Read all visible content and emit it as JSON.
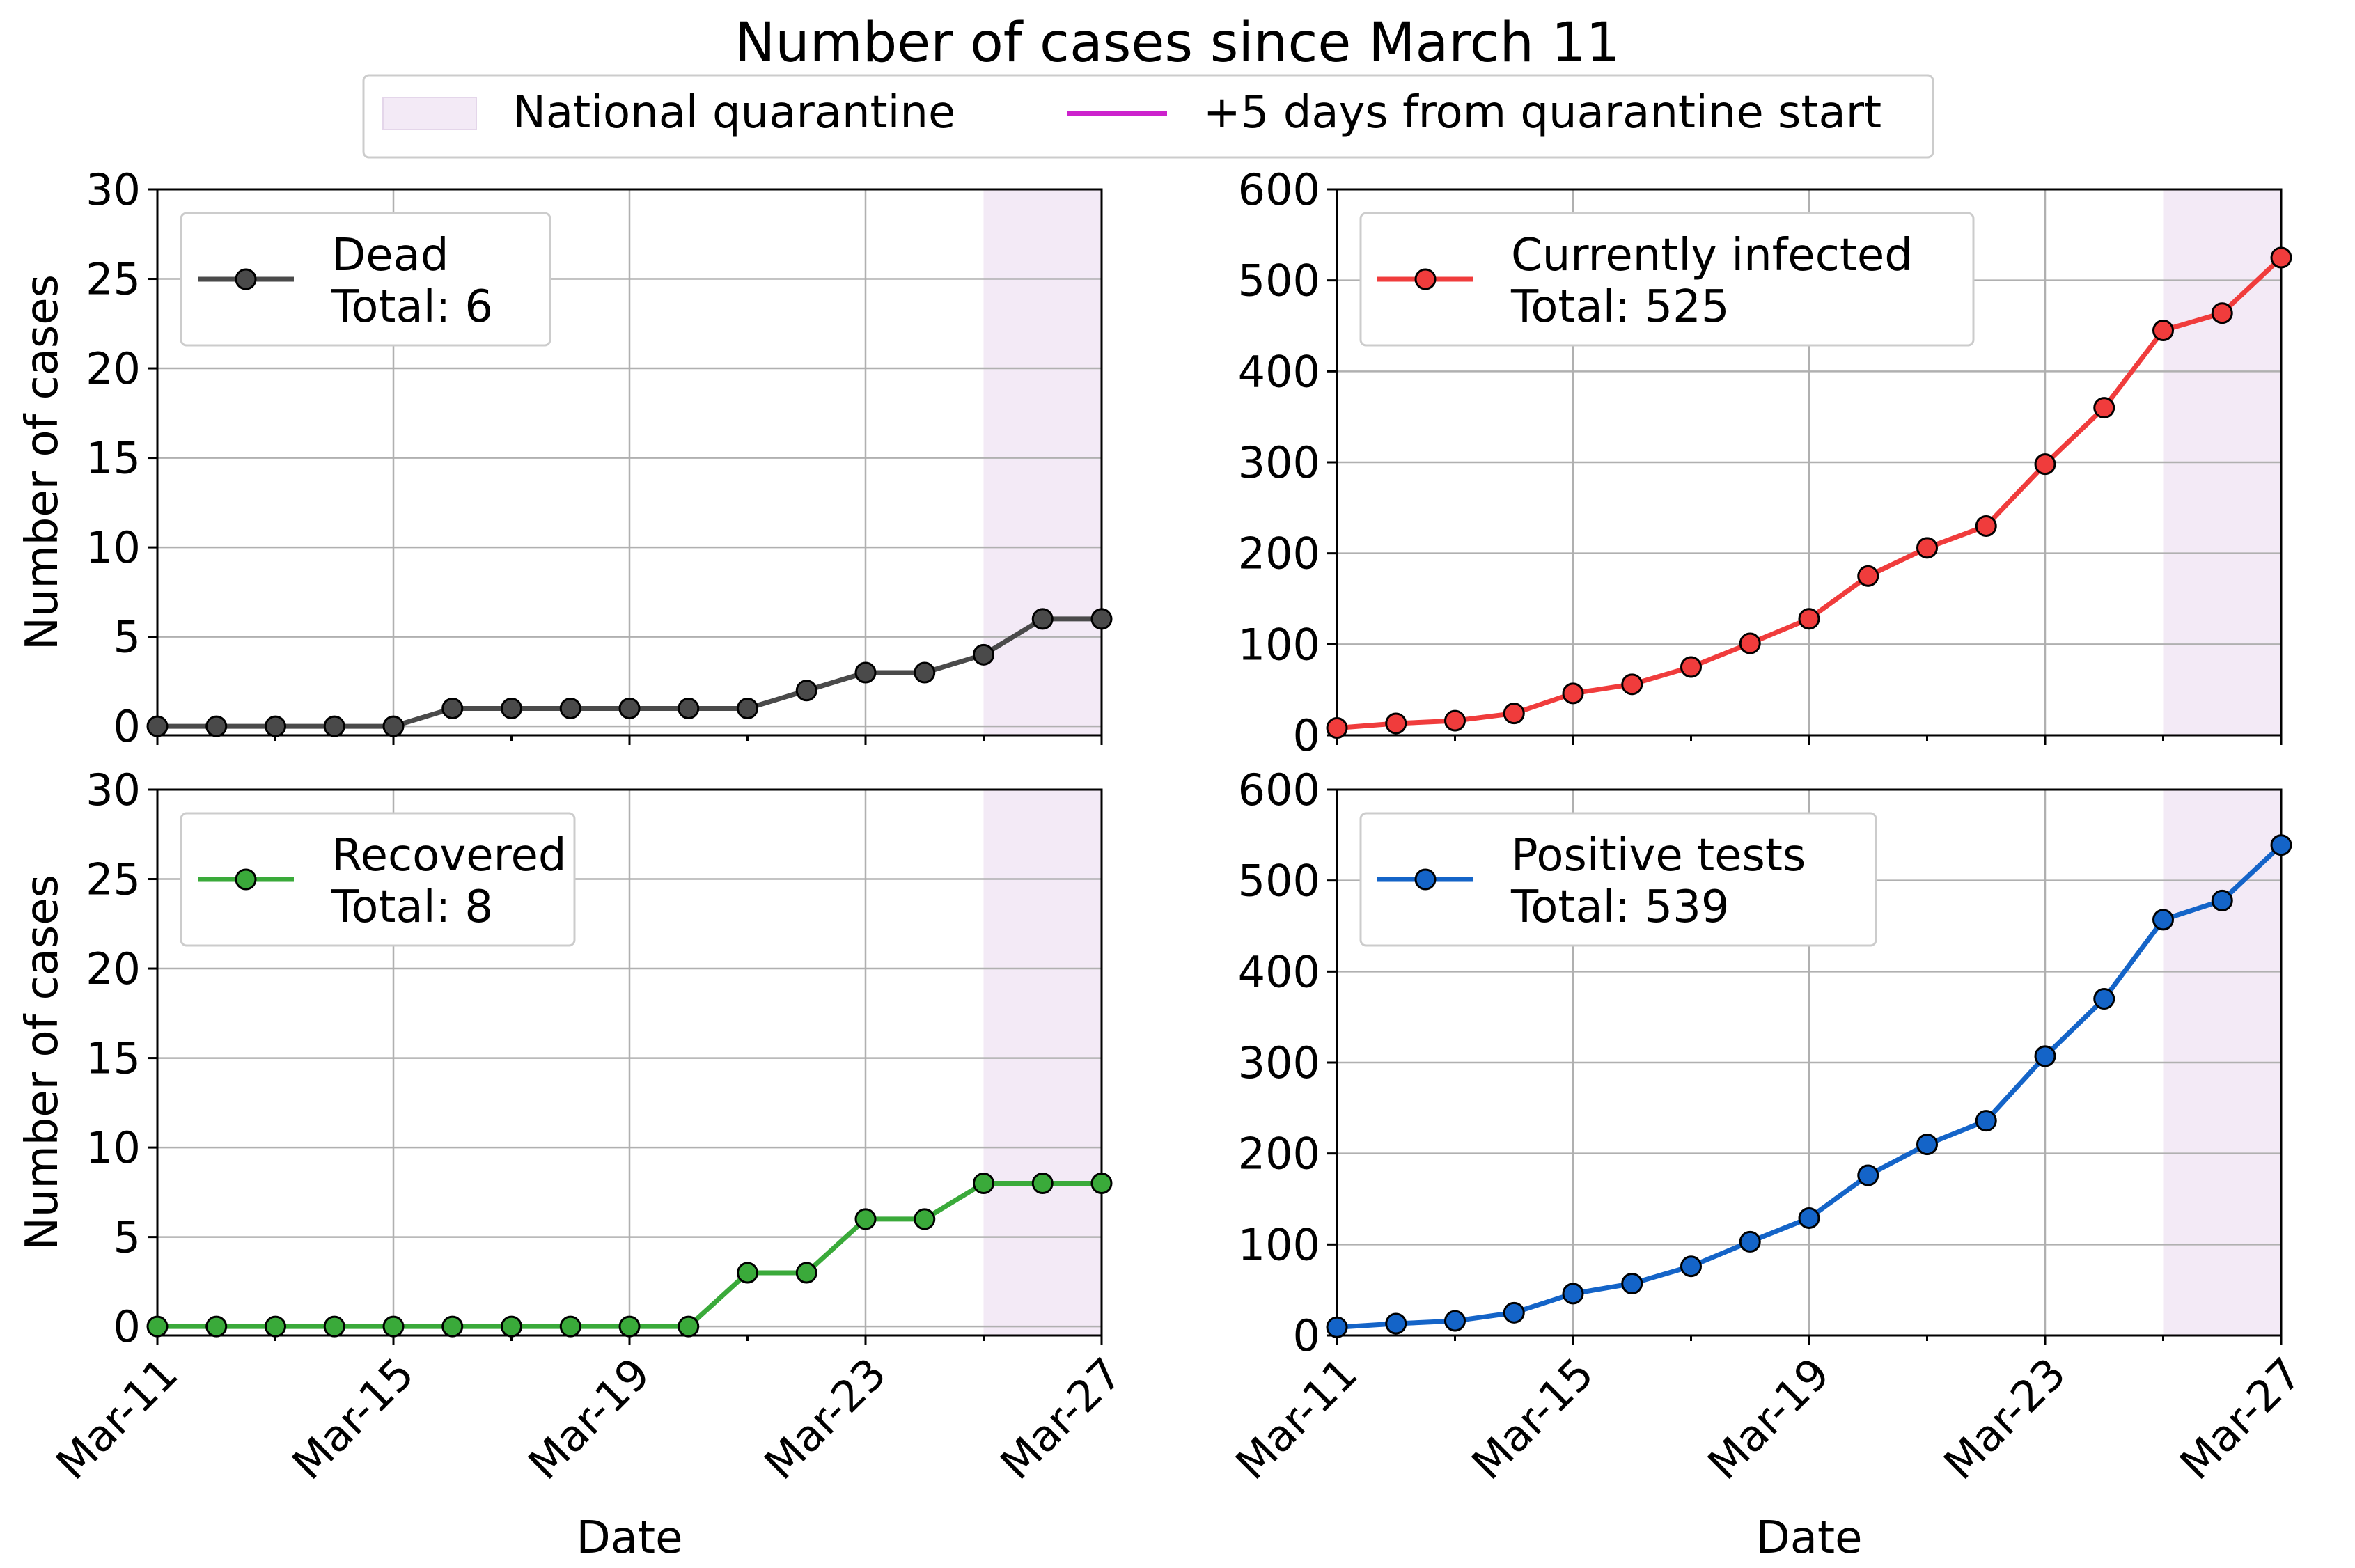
{
  "figure": {
    "title": "Number of cases since March 11",
    "legend": {
      "quarantine_label": "National quarantine",
      "quarantine_color": "#f3eaf6",
      "plus5_label": "+5 days from quarantine start",
      "plus5_color": "#cc22cc"
    }
  },
  "chart_data": [
    {
      "type": "line",
      "series": [
        {
          "name": "Dead",
          "total_label": "Total: 6",
          "color": "#4a4a4a",
          "x": [
            "Mar-11",
            "Mar-12",
            "Mar-13",
            "Mar-14",
            "Mar-15",
            "Mar-16",
            "Mar-17",
            "Mar-18",
            "Mar-19",
            "Mar-20",
            "Mar-21",
            "Mar-22",
            "Mar-23",
            "Mar-24",
            "Mar-25",
            "Mar-26",
            "Mar-27"
          ],
          "values": [
            0,
            0,
            0,
            0,
            0,
            1,
            1,
            1,
            1,
            1,
            1,
            2,
            3,
            3,
            4,
            6,
            6
          ]
        }
      ],
      "xlabel": "",
      "ylabel": "Number of cases",
      "xticks": [
        "Mar-11",
        "Mar-15",
        "Mar-19",
        "Mar-23",
        "Mar-27"
      ],
      "yticks": [
        0,
        5,
        10,
        15,
        20,
        25,
        30
      ],
      "ylim": [
        -0.5,
        30
      ],
      "xlim": [
        "Mar-11",
        "Mar-27"
      ],
      "quarantine_span": [
        "Mar-25",
        "Mar-27"
      ],
      "grid": true,
      "legend_position": "upper-left"
    },
    {
      "type": "line",
      "series": [
        {
          "name": "Currently infected",
          "total_label": "Total: 525",
          "color": "#f03c3c",
          "x": [
            "Mar-11",
            "Mar-12",
            "Mar-13",
            "Mar-14",
            "Mar-15",
            "Mar-16",
            "Mar-17",
            "Mar-18",
            "Mar-19",
            "Mar-20",
            "Mar-21",
            "Mar-22",
            "Mar-23",
            "Mar-24",
            "Mar-25",
            "Mar-26",
            "Mar-27"
          ],
          "values": [
            8,
            13,
            16,
            24,
            46,
            56,
            75,
            101,
            128,
            175,
            206,
            230,
            298,
            360,
            445,
            464,
            525
          ]
        }
      ],
      "xlabel": "",
      "ylabel": "",
      "xticks": [
        "Mar-11",
        "Mar-15",
        "Mar-19",
        "Mar-23",
        "Mar-27"
      ],
      "yticks": [
        0,
        100,
        200,
        300,
        400,
        500,
        600
      ],
      "ylim": [
        0,
        600
      ],
      "xlim": [
        "Mar-11",
        "Mar-27"
      ],
      "quarantine_span": [
        "Mar-25",
        "Mar-27"
      ],
      "grid": true,
      "legend_position": "upper-left"
    },
    {
      "type": "line",
      "series": [
        {
          "name": "Recovered",
          "total_label": "Total: 8",
          "color": "#3aaa3a",
          "x": [
            "Mar-11",
            "Mar-12",
            "Mar-13",
            "Mar-14",
            "Mar-15",
            "Mar-16",
            "Mar-17",
            "Mar-18",
            "Mar-19",
            "Mar-20",
            "Mar-21",
            "Mar-22",
            "Mar-23",
            "Mar-24",
            "Mar-25",
            "Mar-26",
            "Mar-27"
          ],
          "values": [
            0,
            0,
            0,
            0,
            0,
            0,
            0,
            0,
            0,
            0,
            3,
            3,
            6,
            6,
            8,
            8,
            8
          ]
        }
      ],
      "xlabel": "Date",
      "ylabel": "Number of cases",
      "xticks": [
        "Mar-11",
        "Mar-15",
        "Mar-19",
        "Mar-23",
        "Mar-27"
      ],
      "yticks": [
        0,
        5,
        10,
        15,
        20,
        25,
        30
      ],
      "ylim": [
        -0.5,
        30
      ],
      "xlim": [
        "Mar-11",
        "Mar-27"
      ],
      "quarantine_span": [
        "Mar-25",
        "Mar-27"
      ],
      "grid": true,
      "legend_position": "upper-left"
    },
    {
      "type": "line",
      "series": [
        {
          "name": "Positive tests",
          "total_label": "Total: 539",
          "color": "#1464c8",
          "x": [
            "Mar-11",
            "Mar-12",
            "Mar-13",
            "Mar-14",
            "Mar-15",
            "Mar-16",
            "Mar-17",
            "Mar-18",
            "Mar-19",
            "Mar-20",
            "Mar-21",
            "Mar-22",
            "Mar-23",
            "Mar-24",
            "Mar-25",
            "Mar-26",
            "Mar-27"
          ],
          "values": [
            9,
            13,
            16,
            25,
            46,
            57,
            76,
            103,
            129,
            176,
            210,
            236,
            307,
            370,
            457,
            478,
            539
          ]
        }
      ],
      "xlabel": "Date",
      "ylabel": "",
      "xticks": [
        "Mar-11",
        "Mar-15",
        "Mar-19",
        "Mar-23",
        "Mar-27"
      ],
      "yticks": [
        0,
        100,
        200,
        300,
        400,
        500,
        600
      ],
      "ylim": [
        0,
        600
      ],
      "xlim": [
        "Mar-11",
        "Mar-27"
      ],
      "quarantine_span": [
        "Mar-25",
        "Mar-27"
      ],
      "grid": true,
      "legend_position": "upper-left"
    }
  ]
}
